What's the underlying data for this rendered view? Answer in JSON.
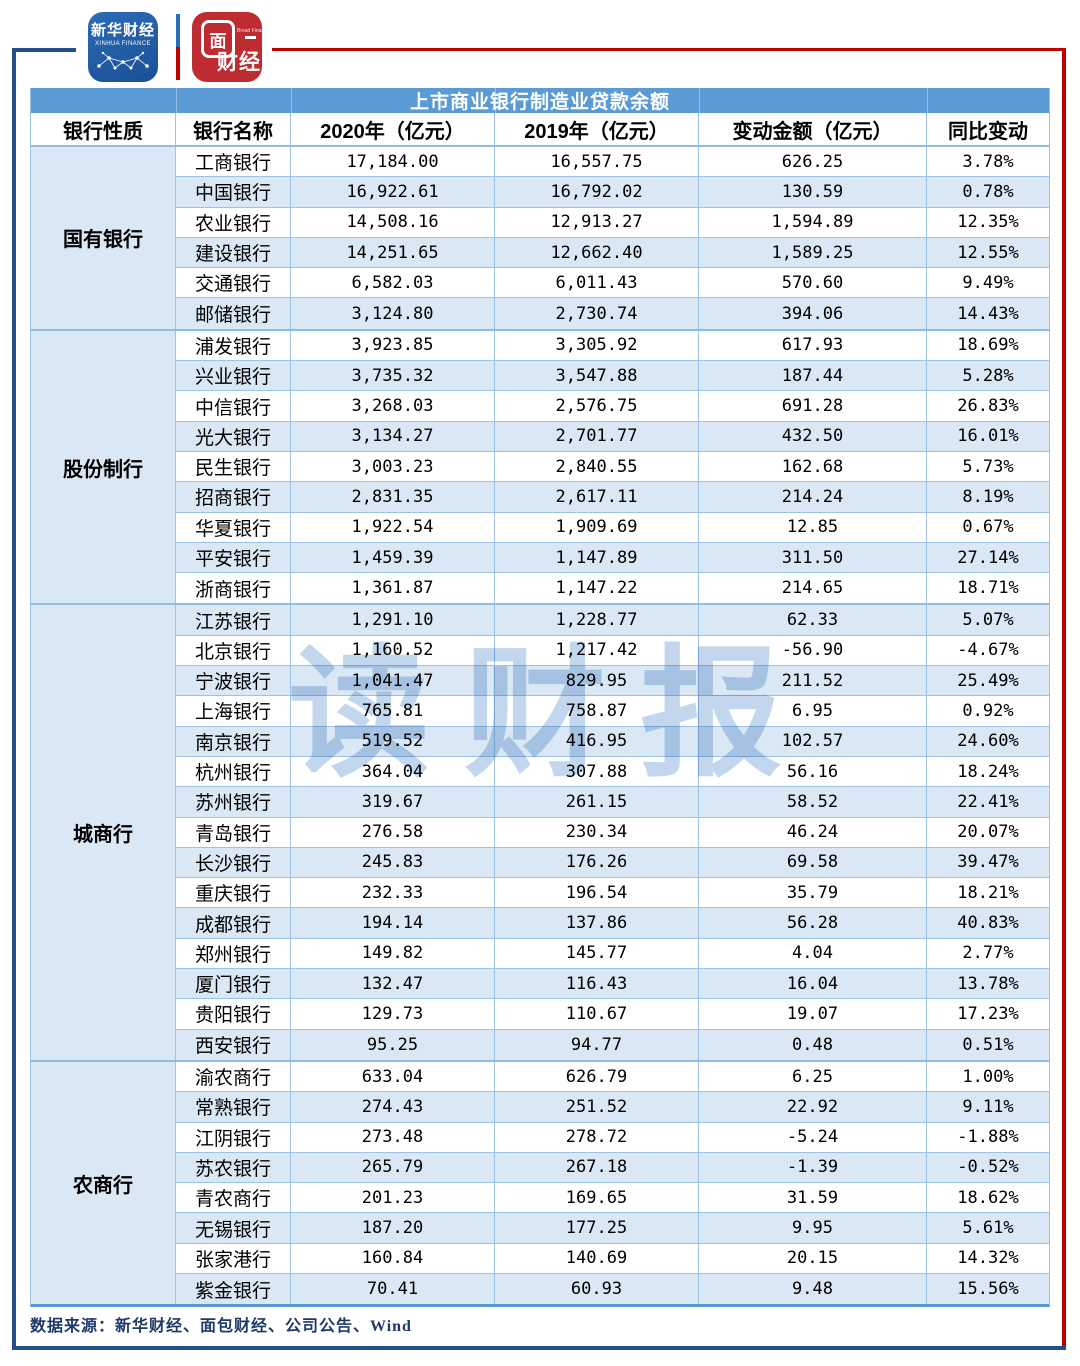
{
  "brand": {
    "xinhua_line1": "新华财经",
    "xinhua_line2": "XINHUA FINANCE",
    "bread_char": "面",
    "bread_sub": "Bread Finance",
    "bread_cai": "财经"
  },
  "watermark": {
    "text": "读财报"
  },
  "chart_data": {
    "type": "table",
    "title": "上市商业银行制造业贷款余额",
    "columns": [
      "银行性质",
      "银行名称",
      "2020年（亿元）",
      "2019年（亿元）",
      "变动金额（亿元）",
      "同比变动"
    ],
    "groups": [
      {
        "category": "国有银行",
        "rows": [
          {
            "name": "工商银行",
            "y2020": "17,184.00",
            "y2019": "16,557.75",
            "change": "626.25",
            "yoy": "3.78%"
          },
          {
            "name": "中国银行",
            "y2020": "16,922.61",
            "y2019": "16,792.02",
            "change": "130.59",
            "yoy": "0.78%"
          },
          {
            "name": "农业银行",
            "y2020": "14,508.16",
            "y2019": "12,913.27",
            "change": "1,594.89",
            "yoy": "12.35%"
          },
          {
            "name": "建设银行",
            "y2020": "14,251.65",
            "y2019": "12,662.40",
            "change": "1,589.25",
            "yoy": "12.55%"
          },
          {
            "name": "交通银行",
            "y2020": "6,582.03",
            "y2019": "6,011.43",
            "change": "570.60",
            "yoy": "9.49%"
          },
          {
            "name": "邮储银行",
            "y2020": "3,124.80",
            "y2019": "2,730.74",
            "change": "394.06",
            "yoy": "14.43%"
          }
        ]
      },
      {
        "category": "股份制行",
        "rows": [
          {
            "name": "浦发银行",
            "y2020": "3,923.85",
            "y2019": "3,305.92",
            "change": "617.93",
            "yoy": "18.69%"
          },
          {
            "name": "兴业银行",
            "y2020": "3,735.32",
            "y2019": "3,547.88",
            "change": "187.44",
            "yoy": "5.28%"
          },
          {
            "name": "中信银行",
            "y2020": "3,268.03",
            "y2019": "2,576.75",
            "change": "691.28",
            "yoy": "26.83%"
          },
          {
            "name": "光大银行",
            "y2020": "3,134.27",
            "y2019": "2,701.77",
            "change": "432.50",
            "yoy": "16.01%"
          },
          {
            "name": "民生银行",
            "y2020": "3,003.23",
            "y2019": "2,840.55",
            "change": "162.68",
            "yoy": "5.73%"
          },
          {
            "name": "招商银行",
            "y2020": "2,831.35",
            "y2019": "2,617.11",
            "change": "214.24",
            "yoy": "8.19%"
          },
          {
            "name": "华夏银行",
            "y2020": "1,922.54",
            "y2019": "1,909.69",
            "change": "12.85",
            "yoy": "0.67%"
          },
          {
            "name": "平安银行",
            "y2020": "1,459.39",
            "y2019": "1,147.89",
            "change": "311.50",
            "yoy": "27.14%"
          },
          {
            "name": "浙商银行",
            "y2020": "1,361.87",
            "y2019": "1,147.22",
            "change": "214.65",
            "yoy": "18.71%"
          }
        ]
      },
      {
        "category": "城商行",
        "rows": [
          {
            "name": "江苏银行",
            "y2020": "1,291.10",
            "y2019": "1,228.77",
            "change": "62.33",
            "yoy": "5.07%"
          },
          {
            "name": "北京银行",
            "y2020": "1,160.52",
            "y2019": "1,217.42",
            "change": "-56.90",
            "yoy": "-4.67%"
          },
          {
            "name": "宁波银行",
            "y2020": "1,041.47",
            "y2019": "829.95",
            "change": "211.52",
            "yoy": "25.49%"
          },
          {
            "name": "上海银行",
            "y2020": "765.81",
            "y2019": "758.87",
            "change": "6.95",
            "yoy": "0.92%"
          },
          {
            "name": "南京银行",
            "y2020": "519.52",
            "y2019": "416.95",
            "change": "102.57",
            "yoy": "24.60%"
          },
          {
            "name": "杭州银行",
            "y2020": "364.04",
            "y2019": "307.88",
            "change": "56.16",
            "yoy": "18.24%"
          },
          {
            "name": "苏州银行",
            "y2020": "319.67",
            "y2019": "261.15",
            "change": "58.52",
            "yoy": "22.41%"
          },
          {
            "name": "青岛银行",
            "y2020": "276.58",
            "y2019": "230.34",
            "change": "46.24",
            "yoy": "20.07%"
          },
          {
            "name": "长沙银行",
            "y2020": "245.83",
            "y2019": "176.26",
            "change": "69.58",
            "yoy": "39.47%"
          },
          {
            "name": "重庆银行",
            "y2020": "232.33",
            "y2019": "196.54",
            "change": "35.79",
            "yoy": "18.21%"
          },
          {
            "name": "成都银行",
            "y2020": "194.14",
            "y2019": "137.86",
            "change": "56.28",
            "yoy": "40.83%"
          },
          {
            "name": "郑州银行",
            "y2020": "149.82",
            "y2019": "145.77",
            "change": "4.04",
            "yoy": "2.77%"
          },
          {
            "name": "厦门银行",
            "y2020": "132.47",
            "y2019": "116.43",
            "change": "16.04",
            "yoy": "13.78%"
          },
          {
            "name": "贵阳银行",
            "y2020": "129.73",
            "y2019": "110.67",
            "change": "19.07",
            "yoy": "17.23%"
          },
          {
            "name": "西安银行",
            "y2020": "95.25",
            "y2019": "94.77",
            "change": "0.48",
            "yoy": "0.51%"
          }
        ]
      },
      {
        "category": "农商行",
        "rows": [
          {
            "name": "渝农商行",
            "y2020": "633.04",
            "y2019": "626.79",
            "change": "6.25",
            "yoy": "1.00%"
          },
          {
            "name": "常熟银行",
            "y2020": "274.43",
            "y2019": "251.52",
            "change": "22.92",
            "yoy": "9.11%"
          },
          {
            "name": "江阴银行",
            "y2020": "273.48",
            "y2019": "278.72",
            "change": "-5.24",
            "yoy": "-1.88%"
          },
          {
            "name": "苏农银行",
            "y2020": "265.79",
            "y2019": "267.18",
            "change": "-1.39",
            "yoy": "-0.52%"
          },
          {
            "name": "青农商行",
            "y2020": "201.23",
            "y2019": "169.65",
            "change": "31.59",
            "yoy": "18.62%"
          },
          {
            "name": "无锡银行",
            "y2020": "187.20",
            "y2019": "177.25",
            "change": "9.95",
            "yoy": "5.61%"
          },
          {
            "name": "张家港行",
            "y2020": "160.84",
            "y2019": "140.69",
            "change": "20.15",
            "yoy": "14.32%"
          },
          {
            "name": "紫金银行",
            "y2020": "70.41",
            "y2019": "60.93",
            "change": "9.48",
            "yoy": "15.56%"
          }
        ]
      }
    ],
    "source_note": "数据来源：新华财经、面包财经、公司公告、Wind"
  },
  "colors": {
    "accent_blue": "#5B9BD5",
    "row_alt_blue": "#DAE7F4",
    "grid_blue": "#9CC2E5",
    "frame_navy": "#234E88",
    "frame_red": "#C00000",
    "logo_blue": "#1E5CA8",
    "logo_red": "#BE2B30",
    "watermark_blue": "#8FB4DE",
    "source_text": "#1E3A68"
  }
}
